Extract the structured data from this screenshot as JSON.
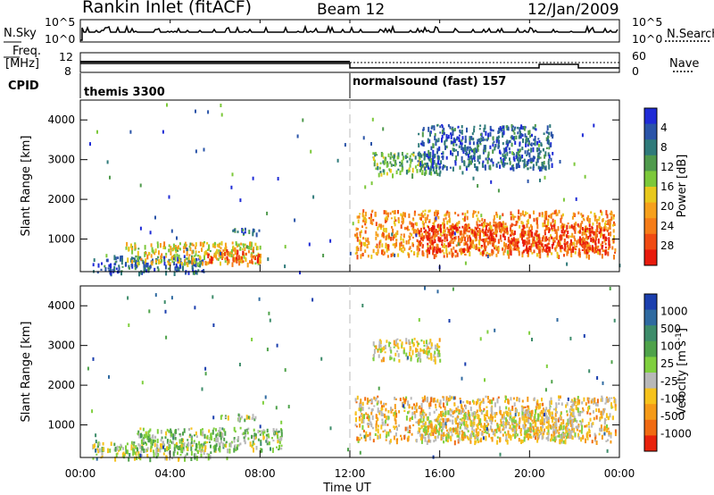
{
  "header": {
    "title": "Rankin Inlet (fitACF)",
    "beam": "Beam 12",
    "date": "12/Jan/2009"
  },
  "top_panels": {
    "nsky_label": "N.Sky",
    "nsky_ticks": [
      "10^5",
      "10^0"
    ],
    "nsearch_label": "N.Search",
    "nsearch_ticks": [
      "10^5",
      "10^0"
    ],
    "freq_label": "Freq.",
    "freq_unit": "[MHz]",
    "freq_ticks": [
      "12",
      "8"
    ],
    "nave_label": "Nave",
    "nave_ticks": [
      "60",
      "0"
    ],
    "cpid_label": "CPID",
    "cpid_segments": [
      {
        "label": "themis 3300",
        "start_hour": 0
      },
      {
        "label": "normalsound (fast) 157",
        "start_hour": 12
      }
    ]
  },
  "x_axis": {
    "label": "Time UT",
    "ticks": [
      "00:00",
      "04:00",
      "08:00",
      "12:00",
      "16:00",
      "20:00",
      "00:00"
    ],
    "range_hours": [
      0,
      24
    ]
  },
  "y_axis": {
    "label": "Slant Range [km]",
    "ticks": [
      "1000",
      "2000",
      "3000",
      "4000"
    ],
    "range_km": [
      180,
      4500
    ]
  },
  "power_colorbar": {
    "label": "Power [dB]",
    "ticks": [
      "4",
      "8",
      "12",
      "16",
      "20",
      "24",
      "28"
    ],
    "colors": [
      "#1f2bd6",
      "#2a54a8",
      "#2f7a7a",
      "#4f9a4c",
      "#7cc83a",
      "#e8c81c",
      "#f6a01c",
      "#f57c18",
      "#f04a12",
      "#e81a0c"
    ]
  },
  "velocity_colorbar": {
    "label": "Velocity [m s",
    "label_sup": "-1",
    "label_close": "]",
    "ticks": [
      "1000",
      "500",
      "100",
      "25",
      "-25",
      "-100",
      "-500",
      "-1000"
    ],
    "colors": [
      "#1b3fae",
      "#2f6aa0",
      "#3d8c6a",
      "#4ea24a",
      "#7fcf3e",
      "#b8b8b8",
      "#f6c21c",
      "#f59a18",
      "#f06a12",
      "#e8220c"
    ]
  },
  "chart_data": [
    {
      "type": "heatmap",
      "title": "Power [dB]",
      "xlabel": "Time UT",
      "ylabel": "Slant Range [km]",
      "xlim": [
        0,
        24
      ],
      "ylim": [
        180,
        4500
      ],
      "scatter_regions": [
        {
          "t": [
            0.5,
            5.5
          ],
          "r": [
            180,
            600
          ],
          "value": 6
        },
        {
          "t": [
            2.0,
            8.0
          ],
          "r": [
            400,
            950
          ],
          "value": 18
        },
        {
          "t": [
            5.5,
            8.0
          ],
          "r": [
            450,
            750
          ],
          "value": 26
        },
        {
          "t": [
            6.5,
            8.0
          ],
          "r": [
            1150,
            1300
          ],
          "value": 8
        },
        {
          "t": [
            12.2,
            23.8
          ],
          "r": [
            600,
            1750
          ],
          "value": 22
        },
        {
          "t": [
            15.0,
            23.5
          ],
          "r": [
            700,
            1400
          ],
          "value": 29
        },
        {
          "t": [
            13.0,
            16.0
          ],
          "r": [
            2650,
            3200
          ],
          "value": 12
        },
        {
          "t": [
            15.0,
            21.0
          ],
          "r": [
            2800,
            3900
          ],
          "value": 6
        }
      ]
    },
    {
      "type": "heatmap",
      "title": "Velocity",
      "xlabel": "Time UT",
      "ylabel": "Slant Range [km]",
      "xlim": [
        0,
        24
      ],
      "ylim": [
        180,
        4500
      ],
      "scatter_regions": [
        {
          "t": [
            0.5,
            6.0
          ],
          "r": [
            180,
            600
          ],
          "value": 0
        },
        {
          "t": [
            2.5,
            9.0
          ],
          "r": [
            400,
            950
          ],
          "value": 100
        },
        {
          "t": [
            6.2,
            8.0
          ],
          "r": [
            1150,
            1300
          ],
          "value": 0
        },
        {
          "t": [
            12.2,
            23.8
          ],
          "r": [
            600,
            1750
          ],
          "value": -300
        },
        {
          "t": [
            15.0,
            22.0
          ],
          "r": [
            700,
            1400
          ],
          "value": -200
        },
        {
          "t": [
            13.0,
            16.0
          ],
          "r": [
            2650,
            3200
          ],
          "value": -150
        }
      ]
    }
  ]
}
